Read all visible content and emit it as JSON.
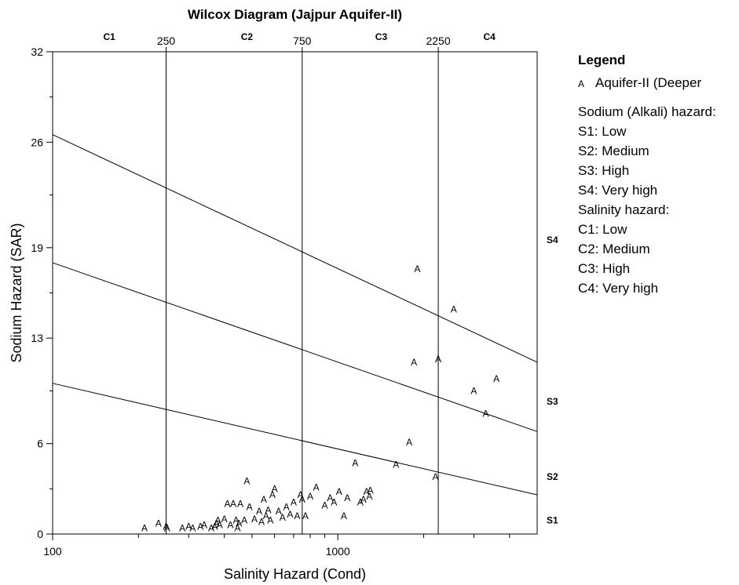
{
  "chart_data": {
    "type": "scatter",
    "title": "Wilcox Diagram (Jajpur Aquifer-II)",
    "xlabel": "Salinity Hazard (Cond)",
    "ylabel": "Sodium Hazard (SAR)",
    "x_scale": "log",
    "xlim": [
      100,
      5000
    ],
    "ylim": [
      0,
      32
    ],
    "x_ticks": [
      {
        "value": 100,
        "label": "100"
      },
      {
        "value": 1000,
        "label": "1000"
      }
    ],
    "x_minor_ticks": [
      200,
      300,
      400,
      500,
      600,
      700,
      800,
      900,
      2000,
      3000,
      4000
    ],
    "y_ticks": [
      0,
      6,
      13,
      19,
      26,
      32
    ],
    "y_minor_ticks": [
      3,
      9.5,
      16,
      22.5,
      29
    ],
    "class_boundaries": [
      {
        "value": 250,
        "label": "250"
      },
      {
        "value": 750,
        "label": "750"
      },
      {
        "value": 2250,
        "label": "2250"
      }
    ],
    "class_labels": [
      {
        "label": "C1",
        "x": 158
      },
      {
        "label": "C2",
        "x": 480
      },
      {
        "label": "C3",
        "x": 1420
      },
      {
        "label": "C4",
        "x": 3400
      }
    ],
    "sodium_lines": [
      {
        "x": [
          100,
          5000
        ],
        "y": [
          10,
          2.6
        ]
      },
      {
        "x": [
          100,
          5000
        ],
        "y": [
          18,
          6.8
        ]
      },
      {
        "x": [
          100,
          5000
        ],
        "y": [
          26.5,
          11.4
        ]
      }
    ],
    "sodium_labels": [
      {
        "label": "S1",
        "y": 0.9
      },
      {
        "label": "S2",
        "y": 3.8
      },
      {
        "label": "S3",
        "y": 8.8
      },
      {
        "label": "S4",
        "y": 19.5
      }
    ],
    "series": [
      {
        "name": "Aquifer-II (Deeper",
        "marker": "A",
        "points": [
          {
            "x": 210,
            "y": 0.4
          },
          {
            "x": 235,
            "y": 0.7
          },
          {
            "x": 250,
            "y": 0.5
          },
          {
            "x": 252,
            "y": 0.4
          },
          {
            "x": 285,
            "y": 0.4
          },
          {
            "x": 300,
            "y": 0.5
          },
          {
            "x": 310,
            "y": 0.4
          },
          {
            "x": 330,
            "y": 0.5
          },
          {
            "x": 340,
            "y": 0.6
          },
          {
            "x": 360,
            "y": 0.4
          },
          {
            "x": 370,
            "y": 0.5
          },
          {
            "x": 375,
            "y": 0.7
          },
          {
            "x": 380,
            "y": 0.9
          },
          {
            "x": 385,
            "y": 0.6
          },
          {
            "x": 400,
            "y": 1.0
          },
          {
            "x": 410,
            "y": 2.0
          },
          {
            "x": 420,
            "y": 0.6
          },
          {
            "x": 430,
            "y": 2.0
          },
          {
            "x": 440,
            "y": 0.9
          },
          {
            "x": 445,
            "y": 0.4
          },
          {
            "x": 450,
            "y": 0.7
          },
          {
            "x": 455,
            "y": 2.0
          },
          {
            "x": 470,
            "y": 0.9
          },
          {
            "x": 480,
            "y": 3.5
          },
          {
            "x": 490,
            "y": 1.8
          },
          {
            "x": 510,
            "y": 1.0
          },
          {
            "x": 530,
            "y": 1.5
          },
          {
            "x": 540,
            "y": 0.8
          },
          {
            "x": 550,
            "y": 2.3
          },
          {
            "x": 560,
            "y": 1.2
          },
          {
            "x": 570,
            "y": 1.6
          },
          {
            "x": 580,
            "y": 0.9
          },
          {
            "x": 590,
            "y": 2.6
          },
          {
            "x": 600,
            "y": 3.0
          },
          {
            "x": 620,
            "y": 1.5
          },
          {
            "x": 640,
            "y": 1.1
          },
          {
            "x": 660,
            "y": 1.8
          },
          {
            "x": 680,
            "y": 1.3
          },
          {
            "x": 700,
            "y": 2.1
          },
          {
            "x": 720,
            "y": 1.2
          },
          {
            "x": 740,
            "y": 2.6
          },
          {
            "x": 750,
            "y": 2.3
          },
          {
            "x": 770,
            "y": 1.2
          },
          {
            "x": 800,
            "y": 2.5
          },
          {
            "x": 840,
            "y": 3.1
          },
          {
            "x": 900,
            "y": 1.9
          },
          {
            "x": 940,
            "y": 2.4
          },
          {
            "x": 970,
            "y": 2.1
          },
          {
            "x": 1010,
            "y": 2.8
          },
          {
            "x": 1050,
            "y": 1.2
          },
          {
            "x": 1080,
            "y": 2.4
          },
          {
            "x": 1150,
            "y": 4.7
          },
          {
            "x": 1200,
            "y": 2.1
          },
          {
            "x": 1230,
            "y": 2.3
          },
          {
            "x": 1260,
            "y": 2.8
          },
          {
            "x": 1290,
            "y": 2.5
          },
          {
            "x": 1300,
            "y": 2.9
          },
          {
            "x": 1600,
            "y": 4.6
          },
          {
            "x": 1780,
            "y": 6.1
          },
          {
            "x": 1850,
            "y": 11.4
          },
          {
            "x": 1900,
            "y": 17.6
          },
          {
            "x": 2200,
            "y": 3.8
          },
          {
            "x": 2250,
            "y": 11.6
          },
          {
            "x": 2550,
            "y": 14.9
          },
          {
            "x": 3000,
            "y": 9.5
          },
          {
            "x": 3300,
            "y": 8.0
          },
          {
            "x": 3600,
            "y": 10.3
          }
        ]
      }
    ],
    "legend": {
      "title": "Legend",
      "position": "right",
      "lines": [
        "Sodium (Alkali) hazard:",
        "S1: Low",
        "S2: Medium",
        "S3: High",
        "S4: Very high",
        "Salinity hazard:",
        "C1: Low",
        "C2: Medium",
        "C3: High",
        "C4: Very high"
      ]
    },
    "colors": {
      "marks": "#000000",
      "background": "#ffffff"
    }
  }
}
